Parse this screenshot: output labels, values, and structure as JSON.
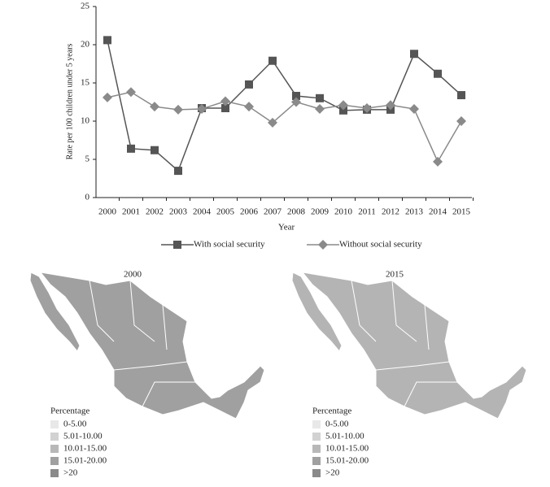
{
  "chart_data": [
    {
      "type": "line",
      "x_label": "Year",
      "y_label": "Rate per 100 children under 5 years",
      "categories": [
        "2000",
        "2001",
        "2002",
        "2003",
        "2004",
        "2005",
        "2006",
        "2007",
        "2008",
        "2009",
        "2010",
        "2011",
        "2012",
        "2013",
        "2014",
        "2015"
      ],
      "series": [
        {
          "name": "With social security",
          "color": "#555555",
          "marker": "square",
          "values": [
            20.6,
            6.4,
            6.2,
            3.5,
            11.7,
            11.7,
            14.8,
            17.9,
            13.3,
            13.0,
            11.4,
            11.5,
            11.5,
            18.8,
            16.2,
            13.4
          ]
        },
        {
          "name": "Without social security",
          "color": "#8a8a8a",
          "marker": "diamond",
          "values": [
            13.1,
            13.8,
            11.9,
            11.5,
            11.6,
            12.6,
            11.9,
            9.8,
            12.5,
            11.6,
            12.1,
            11.7,
            12.1,
            11.6,
            4.7,
            10.0
          ]
        }
      ],
      "ylim": [
        0,
        25
      ],
      "yticks": [
        0,
        5,
        10,
        15,
        20,
        25
      ]
    },
    {
      "type": "map",
      "title": "2000",
      "legend_title": "Percentage",
      "fill": "#a0a0a0",
      "legend": [
        {
          "label": "0-5.00",
          "color": "#e8e8e8"
        },
        {
          "label": "5.01-10.00",
          "color": "#d2d2d2"
        },
        {
          "label": "10.01-15.00",
          "color": "#b8b8b8"
        },
        {
          "label": "15.01-20.00",
          "color": "#a0a0a0"
        },
        {
          "label": ">20",
          "color": "#8a8a8a"
        }
      ]
    },
    {
      "type": "map",
      "title": "2015",
      "legend_title": "Percentage",
      "fill": "#b4b4b4",
      "legend": [
        {
          "label": "0-5.00",
          "color": "#e8e8e8"
        },
        {
          "label": "5.01-10.00",
          "color": "#d2d2d2"
        },
        {
          "label": "10.01-15.00",
          "color": "#b8b8b8"
        },
        {
          "label": "15.01-20.00",
          "color": "#a0a0a0"
        },
        {
          "label": ">20",
          "color": "#8a8a8a"
        }
      ]
    }
  ]
}
